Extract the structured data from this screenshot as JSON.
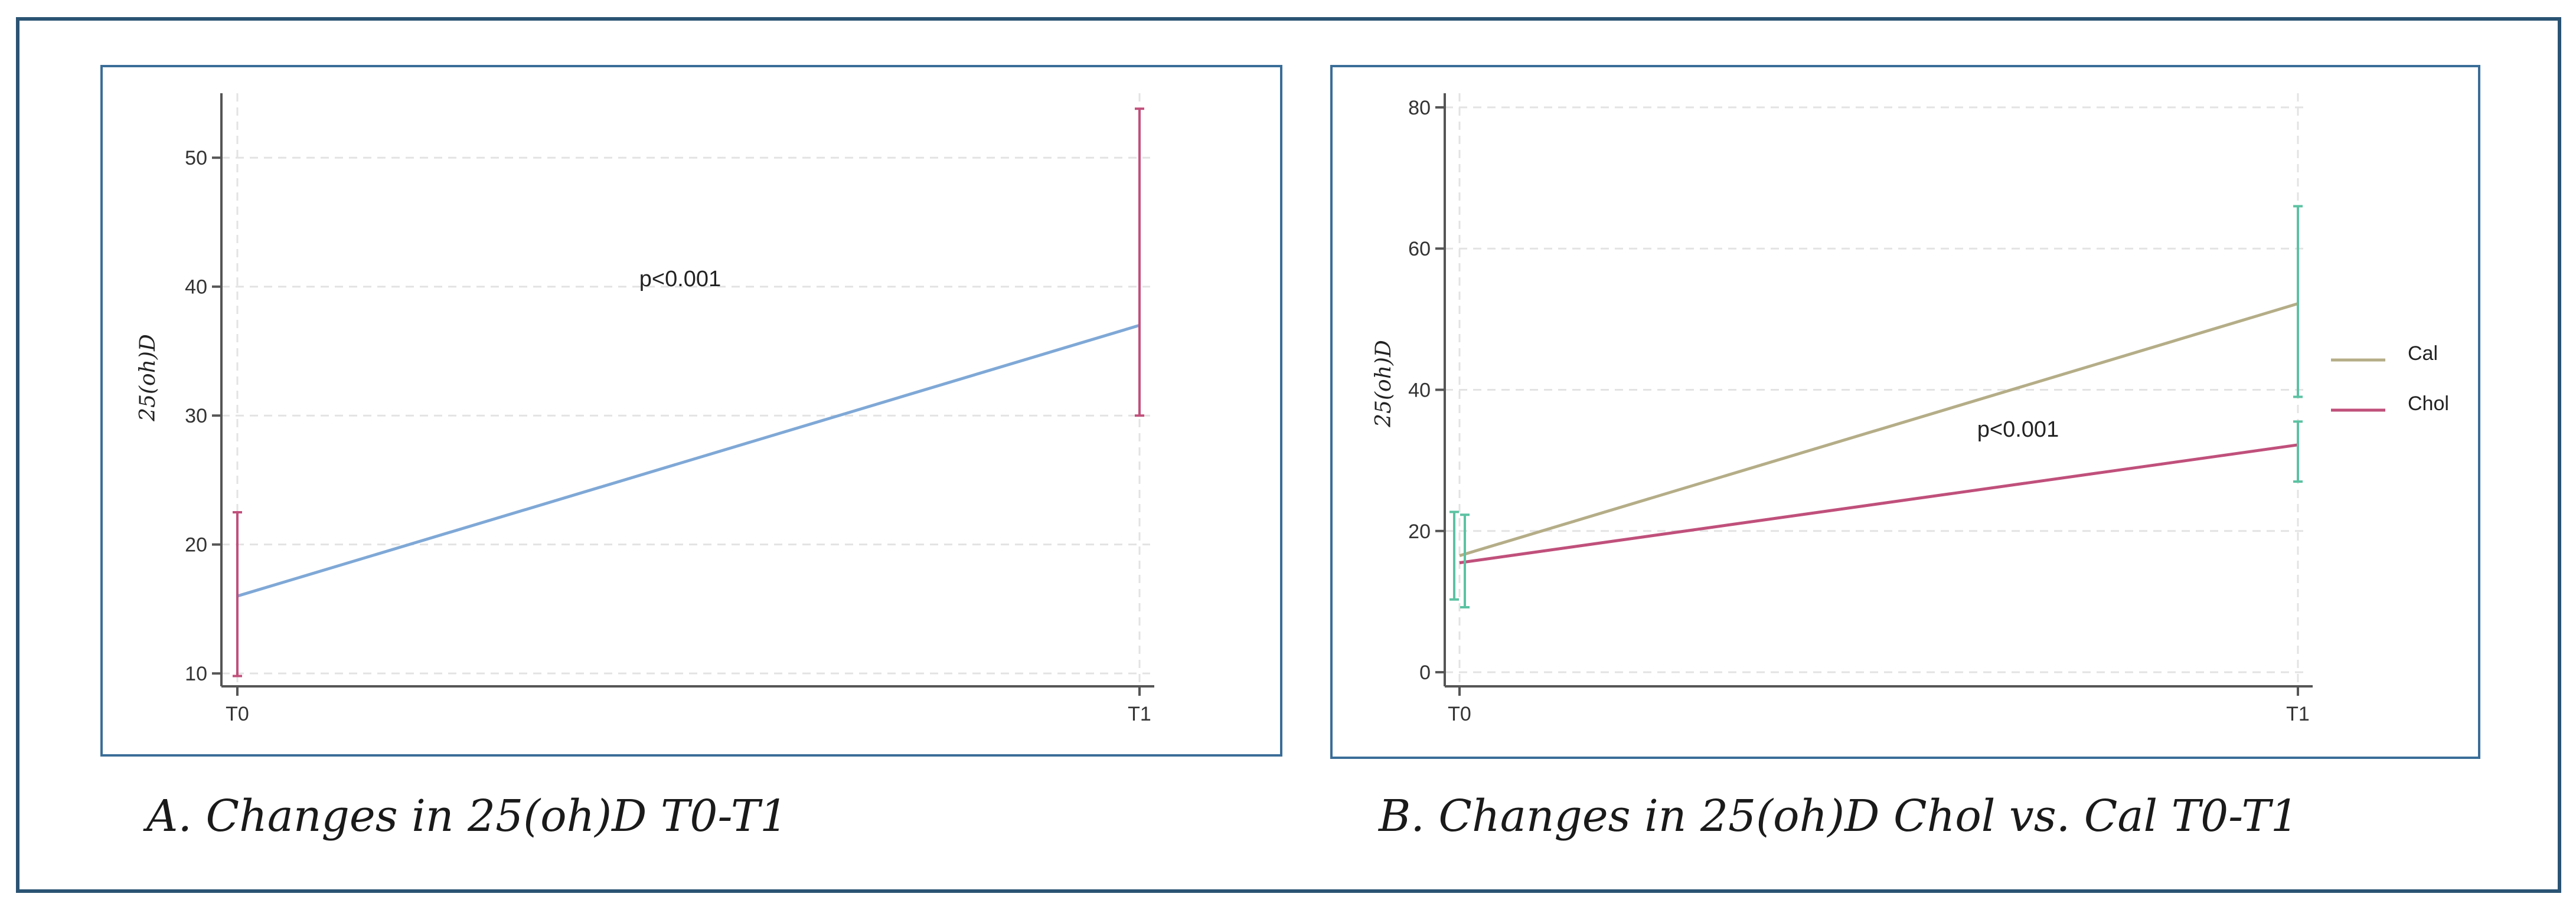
{
  "captions": {
    "a": "A. Changes in 25(oh)D T0-T1",
    "b": "B. Changes in 25(oh)D Chol vs. Cal T0-T1"
  },
  "colors": {
    "outer_border": "#2b5373",
    "panel_border": "#3a6d98",
    "axis": "#555555",
    "grid": "#e3e3e3",
    "errorbar_a": "#c0507b",
    "errorbar_b": "#5cc2a2",
    "line_a": "#7fa8d6",
    "cal": "#b4ad87",
    "chol": "#c0507b"
  },
  "chart_data": [
    {
      "type": "line",
      "title": "",
      "xlabel": "",
      "ylabel": "25(oh)D",
      "categories": [
        "T0",
        "T1"
      ],
      "ylim": [
        9,
        55
      ],
      "yticks": [
        10,
        20,
        30,
        40,
        50
      ],
      "grid": true,
      "annotation": "p<0.001",
      "series": [
        {
          "values": [
            16,
            37
          ],
          "ci_low": [
            9.8,
            30
          ],
          "ci_high": [
            22.5,
            53.8
          ],
          "color_key": "line_a",
          "ci_color_key": "errorbar_a"
        }
      ]
    },
    {
      "type": "line",
      "title": "",
      "xlabel": "",
      "ylabel": "25(oh)D",
      "categories": [
        "T0",
        "T1"
      ],
      "ylim": [
        -2,
        82
      ],
      "yticks": [
        0,
        20,
        40,
        60,
        80
      ],
      "grid": true,
      "legend": "right",
      "annotation": "p<0.001",
      "series": [
        {
          "name": "Cal",
          "values": [
            16.5,
            52.2
          ],
          "ci_low": [
            10.3,
            39
          ],
          "ci_high": [
            22.7,
            66
          ],
          "color_key": "cal",
          "ci_color_key": "errorbar_b"
        },
        {
          "name": "Chol",
          "values": [
            15.5,
            32.2
          ],
          "ci_low": [
            9.2,
            27
          ],
          "ci_high": [
            22.3,
            35.5
          ],
          "color_key": "chol",
          "ci_color_key": "errorbar_b"
        }
      ]
    }
  ]
}
